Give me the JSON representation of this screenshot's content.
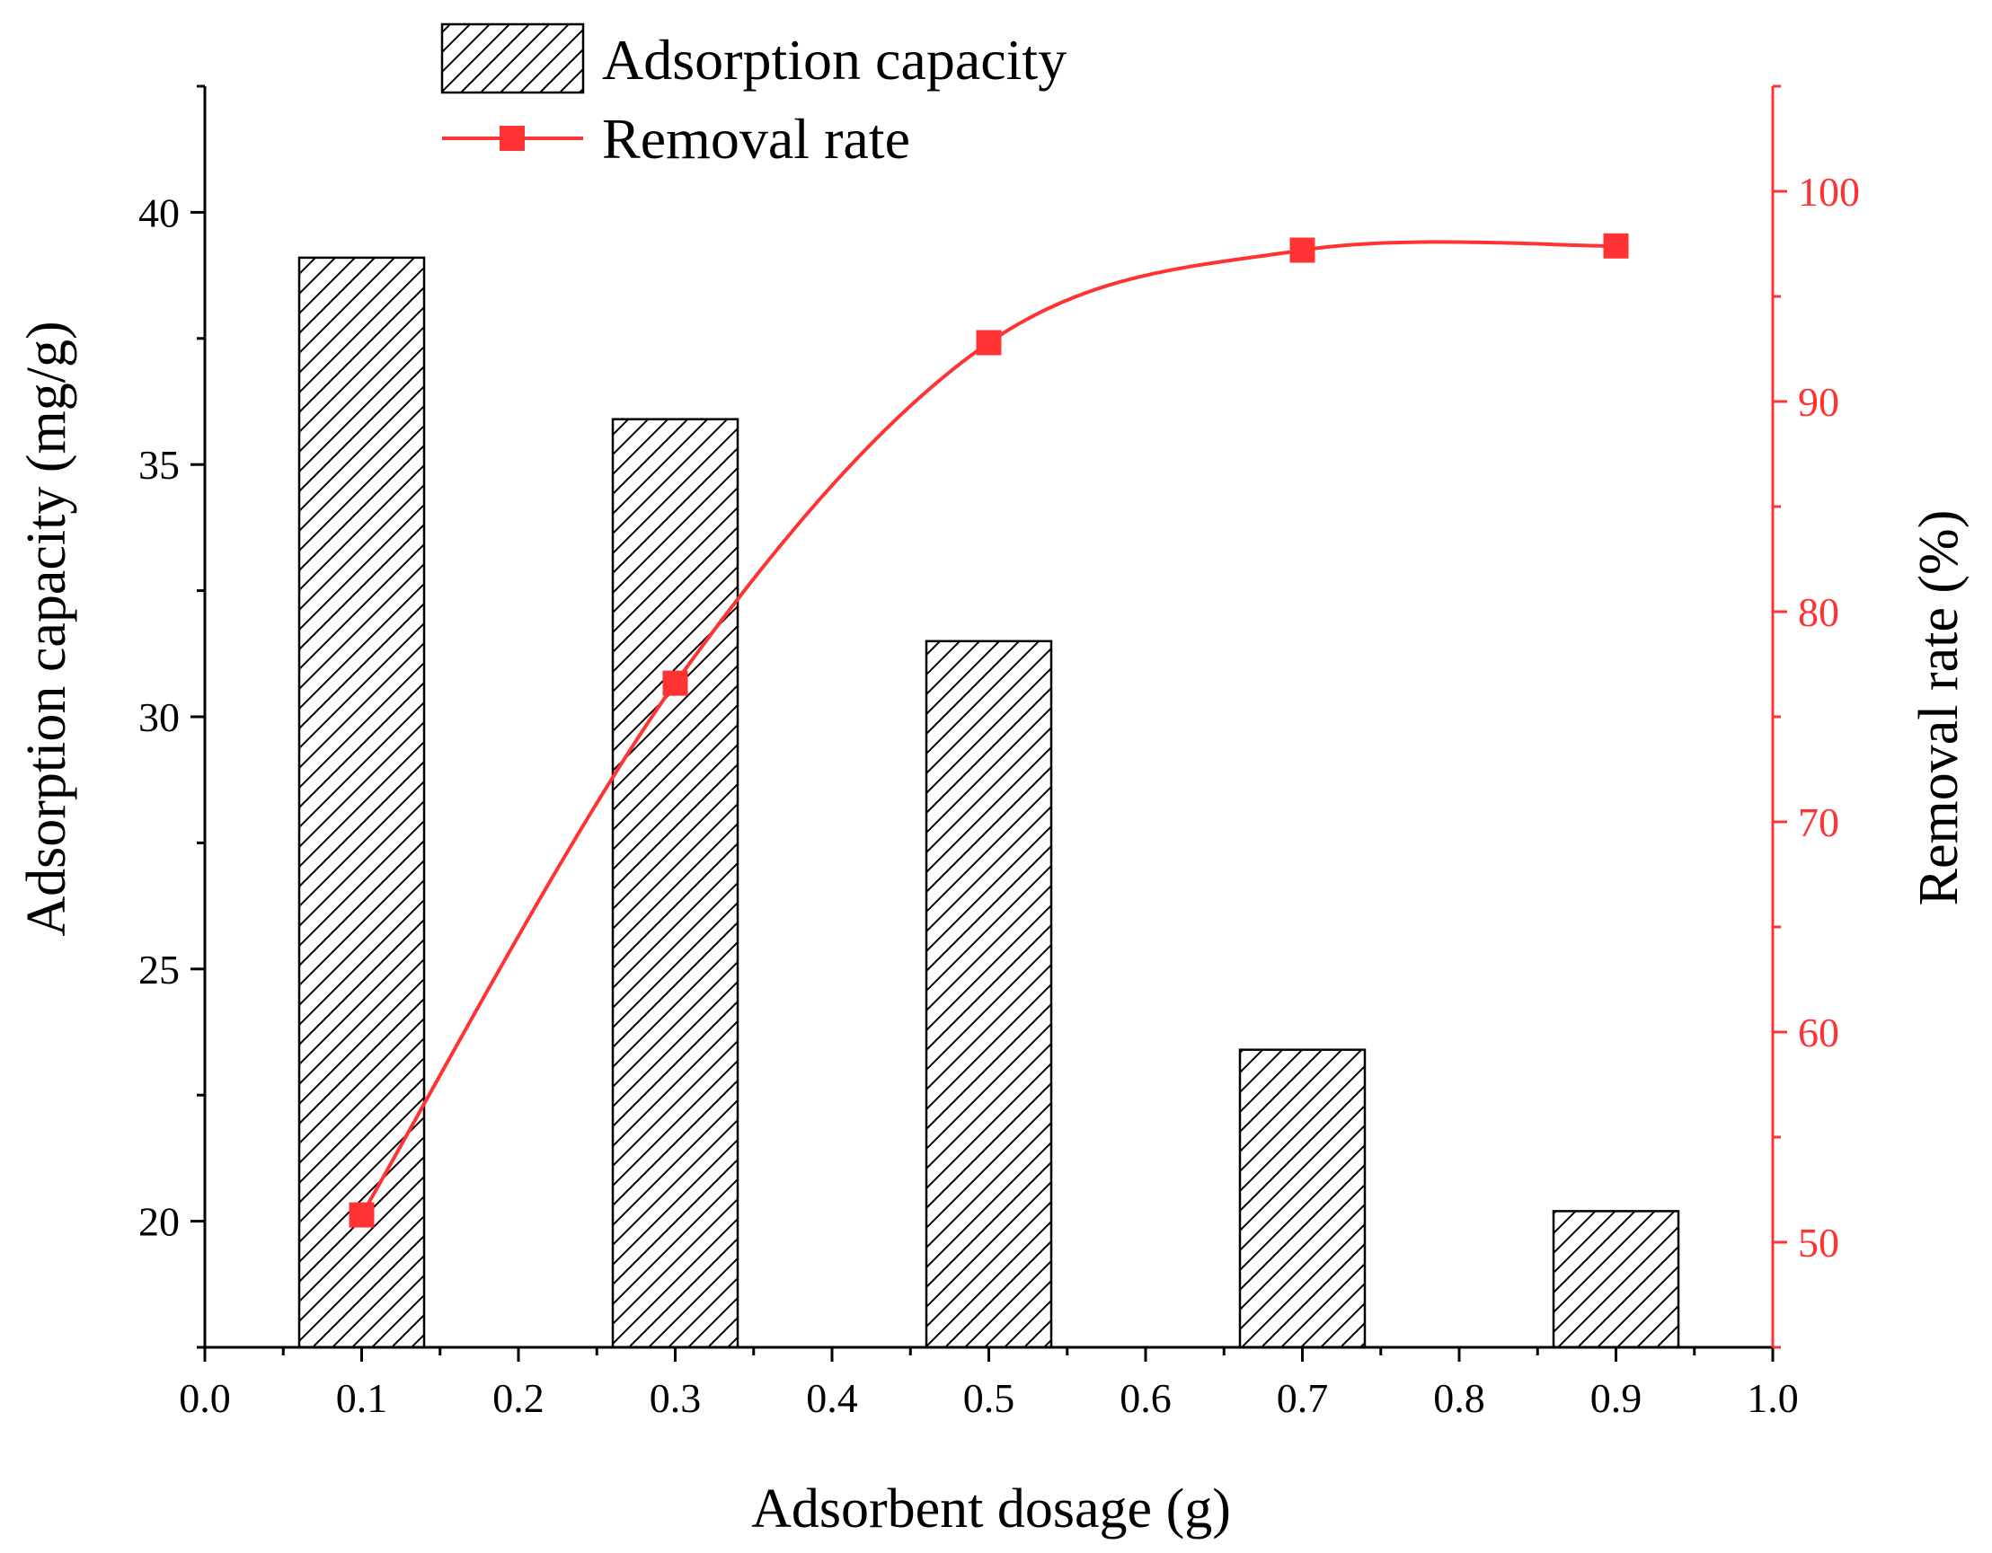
{
  "chart_data": {
    "type": "bar+line",
    "x_axis": {
      "label": "Adsorbent dosage (g)",
      "range": [
        0.0,
        1.0
      ],
      "ticks": [
        0.0,
        0.1,
        0.2,
        0.3,
        0.4,
        0.5,
        0.6,
        0.7,
        0.8,
        0.9,
        1.0
      ],
      "tick_labels": [
        "0.0",
        "0.1",
        "0.2",
        "0.3",
        "0.4",
        "0.5",
        "0.6",
        "0.7",
        "0.8",
        "0.9",
        "1.0"
      ]
    },
    "y_left": {
      "label": "Adsorption capacity (mg/g)",
      "range": [
        17.5,
        42.5
      ],
      "ticks": [
        20,
        25,
        30,
        35,
        40
      ],
      "tick_labels": [
        "20",
        "25",
        "30",
        "35",
        "40"
      ],
      "color": "#000000"
    },
    "y_right": {
      "label": "Removal rate (%)",
      "range": [
        45,
        105
      ],
      "ticks": [
        50,
        60,
        70,
        80,
        90,
        100
      ],
      "tick_labels": [
        "50",
        "60",
        "70",
        "80",
        "90",
        "100"
      ],
      "color": "#ff3333"
    },
    "series": [
      {
        "name": "Adsorption capacity",
        "type": "bar",
        "axis": "left",
        "pattern": "diagonal-hatch",
        "x": [
          0.1,
          0.3,
          0.5,
          0.7,
          0.9
        ],
        "values": [
          39.1,
          35.9,
          31.5,
          23.4,
          20.2
        ]
      },
      {
        "name": "Removal rate",
        "type": "line",
        "axis": "right",
        "marker": "square",
        "color": "#ff3333",
        "smooth": true,
        "x": [
          0.1,
          0.3,
          0.5,
          0.7,
          0.9
        ],
        "values": [
          51.3,
          76.6,
          92.8,
          97.2,
          97.4
        ]
      }
    ],
    "legend": {
      "placement": "top-center",
      "entries": [
        "Adsorption capacity",
        "Removal rate"
      ]
    }
  }
}
